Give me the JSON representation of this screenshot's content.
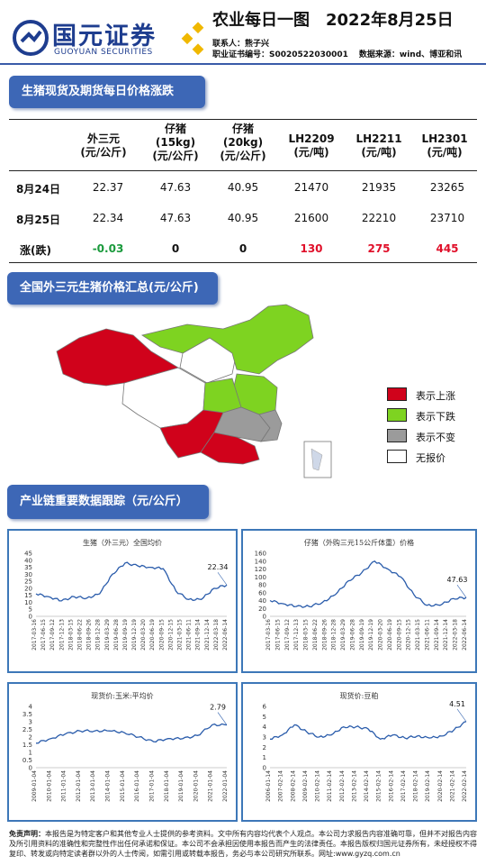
{
  "header": {
    "logo_cn": "国元证券",
    "logo_en": "GUOYUAN SECURITIES",
    "title": "农业每日一图　2022年8月25日",
    "contact": "联系人：熊子兴",
    "cert": "职业证书编号：S0020522030001",
    "source": "数据来源：wind、博亚和讯"
  },
  "section1": {
    "title": "生猪现货及期货每日价格涨跌"
  },
  "price_table": {
    "headers": [
      "外三元\n(元/公斤)",
      "仔猪\n(15kg)\n(元/公斤)",
      "仔猪\n(20kg)\n(元/公斤)",
      "LH2209\n(元/吨)",
      "LH2211\n(元/吨)",
      "LH2301\n(元/吨)"
    ],
    "rows": [
      {
        "label": "8月24日",
        "values": [
          "22.37",
          "47.63",
          "40.95",
          "21470",
          "21935",
          "23265"
        ]
      },
      {
        "label": "8月25日",
        "values": [
          "22.34",
          "47.63",
          "40.95",
          "21600",
          "22210",
          "23710"
        ]
      },
      {
        "label": "涨(跌)",
        "values": [
          "-0.03",
          "0",
          "0",
          "130",
          "275",
          "445"
        ]
      }
    ]
  },
  "section2": {
    "title": "全国外三元生猪价格汇总(元/公斤)"
  },
  "map": {
    "legend": [
      {
        "label": "表示上涨",
        "color": "#d0021b"
      },
      {
        "label": "表示下跌",
        "color": "#7ed321"
      },
      {
        "label": "表示不变",
        "color": "#9b9b9b"
      },
      {
        "label": "无报价",
        "color": "#ffffff"
      }
    ]
  },
  "section3": {
    "title": "产业链重要数据跟踪（元/公斤）"
  },
  "charts": [
    {
      "title": "生猪（外三元）全国均价",
      "last_label": "22.34",
      "yticks": [
        "45",
        "40",
        "35",
        "30",
        "25",
        "20",
        "15",
        "10",
        "5",
        "0"
      ],
      "xticks": [
        "2017-03-16",
        "2017-06-15",
        "2017-09-12",
        "2017-12-13",
        "2018-03-15",
        "2018-06-22",
        "2018-09-26",
        "2018-12-28",
        "2019-03-29",
        "2019-06-28",
        "2019-09-19",
        "2019-12-19",
        "2020-03-20",
        "2020-06-19",
        "2020-09-15",
        "2020-12-15",
        "2021-03-15",
        "2021-06-11",
        "2021-09-14",
        "2021-12-14",
        "2022-03-18",
        "2022-06-14"
      ]
    },
    {
      "title": "仔猪（外购三元15公斤体重）价格",
      "last_label": "47.63",
      "yticks": [
        "160",
        "140",
        "120",
        "100",
        "80",
        "60",
        "40",
        "20",
        "0"
      ],
      "xticks": [
        "2017-03-16",
        "2017-06-15",
        "2017-09-12",
        "2017-12-13",
        "2018-03-15",
        "2018-06-22",
        "2018-09-26",
        "2018-12-28",
        "2019-03-29",
        "2019-06-28",
        "2019-09-19",
        "2019-12-19",
        "2020-03-20",
        "2020-06-19",
        "2020-09-15",
        "2020-12-15",
        "2021-03-15",
        "2021-06-11",
        "2021-09-14",
        "2021-12-14",
        "2022-03-18",
        "2022-06-14"
      ]
    },
    {
      "title": "现货价:玉米:平均价",
      "last_label": "2.79",
      "yticks": [
        "4",
        "3.5",
        "3",
        "2.5",
        "2",
        "1.5",
        "1",
        "0.5",
        "0"
      ],
      "xticks": [
        "2009-01-04",
        "2010-01-04",
        "2011-01-04",
        "2012-01-04",
        "2013-01-04",
        "2014-01-04",
        "2015-01-04",
        "2016-01-04",
        "2017-01-04",
        "2018-01-04",
        "2019-01-04",
        "2020-01-04",
        "2021-01-04",
        "2022-01-04"
      ]
    },
    {
      "title": "现货价:豆粕",
      "last_label": "4.51",
      "yticks": [
        "6",
        "5",
        "4",
        "3",
        "2",
        "1",
        "0"
      ],
      "xticks": [
        "2006-01-14",
        "2007-02-14",
        "2008-02-14",
        "2009-02-14",
        "2010-02-14",
        "2011-02-14",
        "2012-02-14",
        "2013-02-14",
        "2014-02-14",
        "2015-02-14",
        "2016-02-14",
        "2017-02-14",
        "2018-02-14",
        "2019-02-14",
        "2020-02-14",
        "2021-02-14",
        "2022-02-14"
      ]
    }
  ],
  "chart_data": [
    {
      "type": "line",
      "title": "生猪（外三元）全国均价",
      "ylim": [
        0,
        45
      ],
      "x": [
        "2017-03",
        "2017-09",
        "2018-03",
        "2018-09",
        "2019-03",
        "2019-06",
        "2019-09",
        "2019-11",
        "2020-03",
        "2020-09",
        "2021-01",
        "2021-06",
        "2021-10",
        "2022-03",
        "2022-06",
        "2022-08"
      ],
      "values": [
        16,
        14,
        11,
        14,
        13,
        16,
        30,
        38,
        36,
        35,
        34,
        18,
        12,
        12,
        20,
        22.34
      ]
    },
    {
      "type": "line",
      "title": "仔猪（外购三元15公斤体重）价格",
      "ylim": [
        0,
        160
      ],
      "x": [
        "2017-03",
        "2017-09",
        "2018-03",
        "2018-09",
        "2019-03",
        "2019-06",
        "2019-09",
        "2019-12",
        "2020-03",
        "2020-09",
        "2021-01",
        "2021-06",
        "2021-10",
        "2022-03",
        "2022-06",
        "2022-08"
      ],
      "values": [
        40,
        32,
        25,
        25,
        35,
        55,
        90,
        110,
        140,
        120,
        100,
        55,
        28,
        28,
        45,
        47.63
      ]
    },
    {
      "type": "line",
      "title": "现货价:玉米:平均价",
      "ylim": [
        0,
        4
      ],
      "x": [
        "2009",
        "2010",
        "2011",
        "2012",
        "2013",
        "2014",
        "2015",
        "2016",
        "2017",
        "2018",
        "2019",
        "2020",
        "2021",
        "2022"
      ],
      "values": [
        1.6,
        1.9,
        2.2,
        2.4,
        2.4,
        2.4,
        2.3,
        2.0,
        1.7,
        1.9,
        1.9,
        2.1,
        2.8,
        2.79
      ]
    },
    {
      "type": "line",
      "title": "现货价:豆粕",
      "ylim": [
        0,
        6
      ],
      "x": [
        "2006",
        "2007",
        "2008",
        "2009",
        "2010",
        "2011",
        "2012",
        "2013",
        "2014",
        "2015",
        "2016",
        "2017",
        "2018",
        "2019",
        "2020",
        "2021",
        "2022"
      ],
      "values": [
        2.8,
        3.2,
        4.2,
        3.5,
        3.0,
        3.2,
        4.0,
        4.0,
        3.8,
        2.8,
        3.2,
        2.9,
        3.1,
        2.9,
        3.1,
        3.7,
        4.51
      ]
    }
  ],
  "disclaimer": {
    "label": "免责声明：",
    "text": "本报告是为特定客户和其他专业人士提供的参考资料。文中所有内容均代表个人观点。本公司力求报告内容准确可靠，但并不对报告内容及所引用资料的准确性和完整性作出任何承诺和保证。本公司不会承担因使用本报告而产生的法律责任。本报告版权归国元证券所有，未经授权不得复印、转发或向特定读者群以外的人士传阅，如需引用或转载本报告，务必与本公司研究所联系。网址:www.gyzq.com.cn"
  }
}
